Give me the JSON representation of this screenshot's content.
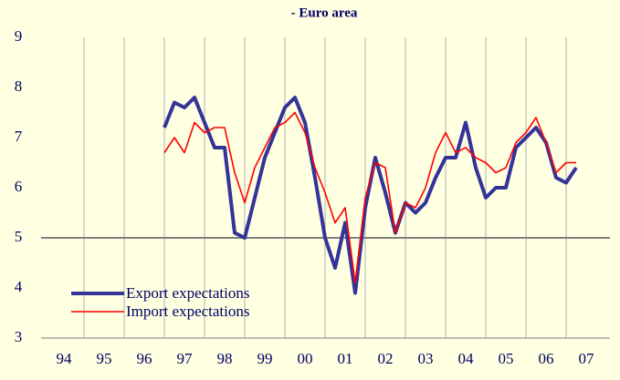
{
  "chart_data": {
    "type": "line",
    "title": "- Euro area",
    "x": [
      1997,
      1997.25,
      1997.5,
      1997.75,
      1998,
      1998.25,
      1998.5,
      1998.75,
      1999,
      1999.25,
      1999.5,
      1999.75,
      2000,
      2000.25,
      2000.5,
      2000.75,
      2001,
      2001.25,
      2001.5,
      2001.75,
      2002,
      2002.25,
      2002.5,
      2002.75,
      2003,
      2003.25,
      2003.5,
      2003.75,
      2004,
      2004.25,
      2004.5,
      2004.75,
      2005,
      2005.25,
      2005.5,
      2005.75,
      2006,
      2006.25,
      2006.5,
      2006.75,
      2007,
      2007.25
    ],
    "series": [
      {
        "name": "Export expectations",
        "color": "#333399",
        "values": [
          7.2,
          7.7,
          7.6,
          7.8,
          7.3,
          6.8,
          6.8,
          5.1,
          5.0,
          5.8,
          6.6,
          7.1,
          7.6,
          7.8,
          7.3,
          6.2,
          5.0,
          4.4,
          5.3,
          3.9,
          5.6,
          6.6,
          5.9,
          5.1,
          5.7,
          5.5,
          5.7,
          6.2,
          6.6,
          6.6,
          7.3,
          6.4,
          5.8,
          6.0,
          6.0,
          6.8,
          7.0,
          7.2,
          6.9,
          6.2,
          6.1,
          6.4
        ]
      },
      {
        "name": "Import expectations",
        "color": "#ff0000",
        "values": [
          6.7,
          7.0,
          6.7,
          7.3,
          7.1,
          7.2,
          7.2,
          6.3,
          5.7,
          6.4,
          6.8,
          7.2,
          7.3,
          7.5,
          7.1,
          6.4,
          5.9,
          5.3,
          5.6,
          4.1,
          5.8,
          6.5,
          6.4,
          5.1,
          5.7,
          5.6,
          6.0,
          6.7,
          7.1,
          6.7,
          6.8,
          6.6,
          6.5,
          6.3,
          6.4,
          6.9,
          7.1,
          7.4,
          6.9,
          6.3,
          6.5,
          6.5
        ]
      }
    ],
    "xlim": [
      1994,
      2008
    ],
    "xticks": [
      {
        "value": 1994.5,
        "label": "94"
      },
      {
        "value": 1995.5,
        "label": "95"
      },
      {
        "value": 1996.5,
        "label": "96"
      },
      {
        "value": 1997.5,
        "label": "97"
      },
      {
        "value": 1998.5,
        "label": "98"
      },
      {
        "value": 1999.5,
        "label": "99"
      },
      {
        "value": 2000.5,
        "label": "00"
      },
      {
        "value": 2001.5,
        "label": "01"
      },
      {
        "value": 2002.5,
        "label": "02"
      },
      {
        "value": 2003.5,
        "label": "03"
      },
      {
        "value": 2004.5,
        "label": "04"
      },
      {
        "value": 2005.5,
        "label": "05"
      },
      {
        "value": 2006.5,
        "label": "06"
      },
      {
        "value": 2007.5,
        "label": "07"
      }
    ],
    "x_gridlines": [
      1995,
      1996,
      1997,
      1998,
      1999,
      2000,
      2001,
      2002,
      2003,
      2004,
      2005,
      2006,
      2007
    ],
    "ylim": [
      3,
      9
    ],
    "yticks": [
      3,
      4,
      5,
      6,
      7,
      8,
      9
    ],
    "reference_line": 5,
    "legend": "lower left"
  }
}
